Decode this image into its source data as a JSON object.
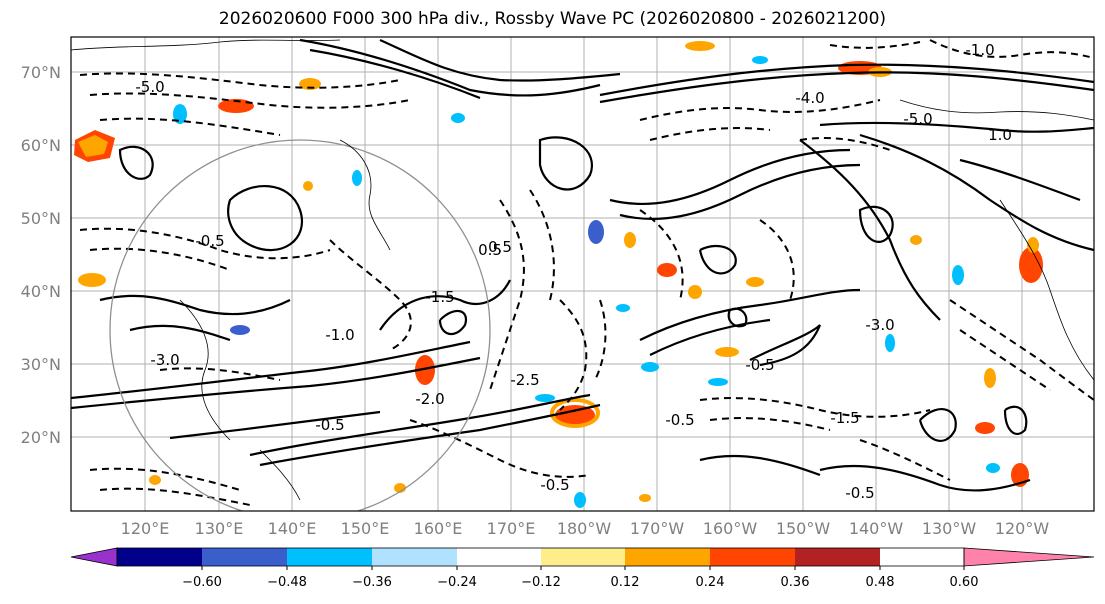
{
  "title": "2026020600 F000 300 hPa div., Rossby Wave PC (2026020800 - 2026021200)",
  "map": {
    "lat_labels": [
      "70°N",
      "60°N",
      "50°N",
      "40°N",
      "30°N",
      "20°N"
    ],
    "lon_labels": [
      "120°E",
      "130°E",
      "140°E",
      "150°E",
      "160°E",
      "170°E",
      "180°W",
      "170°W",
      "160°W",
      "150°W",
      "140°W",
      "130°W",
      "120°W"
    ],
    "contour_labels": [
      "0.5",
      "-0.5",
      "-1.0",
      "-1.5",
      "-2.0",
      "-3.0",
      "-4.0",
      "-5.0",
      "1.0",
      "-0.5",
      "-0.5",
      "-1.5",
      "-2.5",
      "-3.0",
      "-0.5",
      "-0.5",
      "-5.0",
      "-1.0",
      "0.5",
      "-0.5"
    ]
  },
  "colorbar": {
    "ticks": [
      "−0.60",
      "−0.48",
      "−0.36",
      "−0.24",
      "−0.12",
      "0.12",
      "0.24",
      "0.36",
      "0.48",
      "0.60"
    ],
    "colors": [
      "#9932cc",
      "#00008b",
      "#3a5fcd",
      "#00bfff",
      "#b0e2ff",
      "#ffffff",
      "#ffec8b",
      "#ffa500",
      "#ff4500",
      "#b22222",
      "#ff82ab"
    ]
  }
}
